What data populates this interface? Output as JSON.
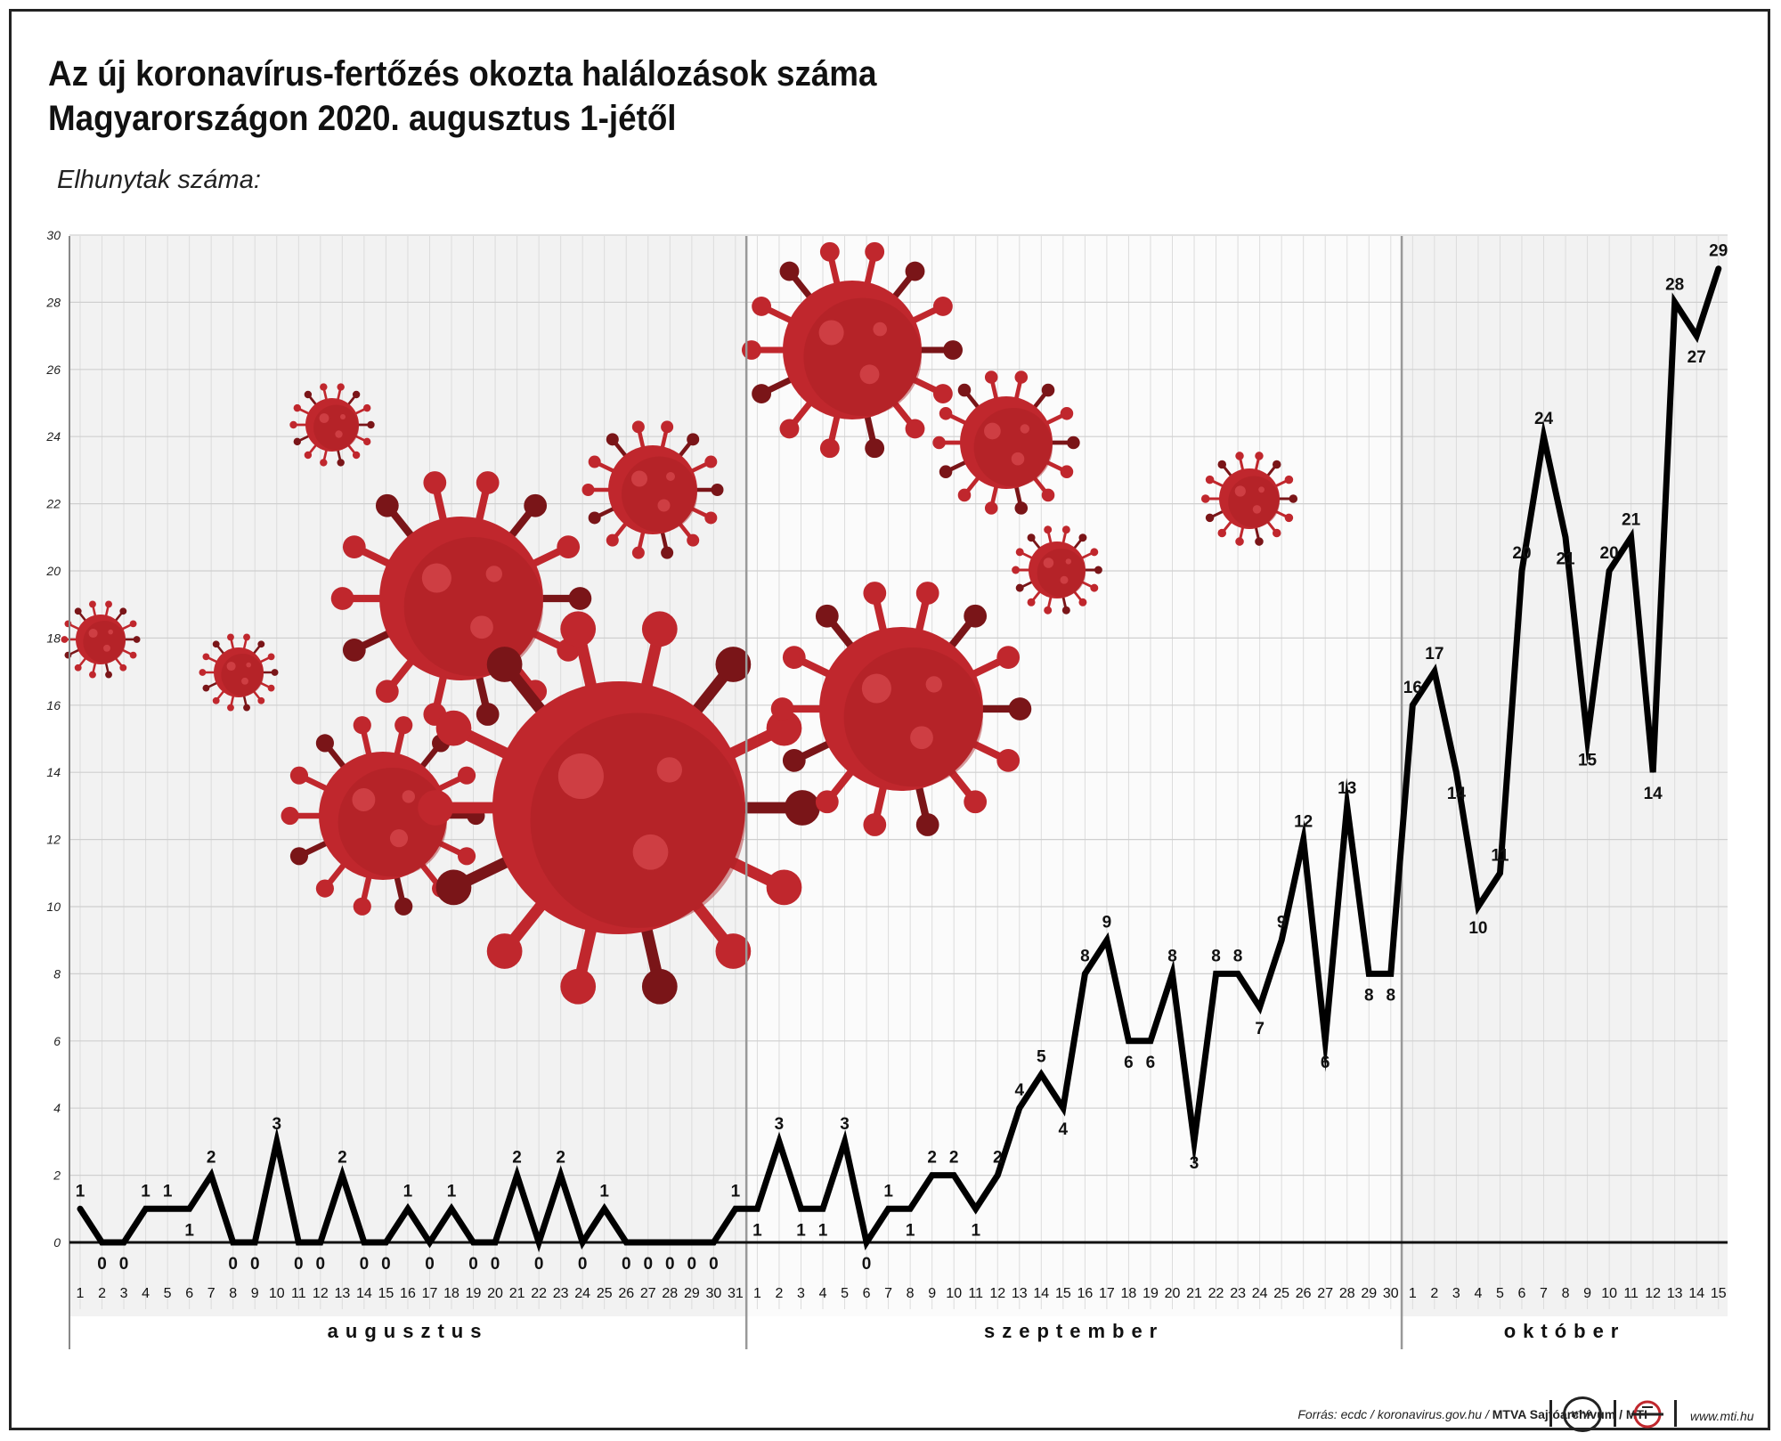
{
  "title_line1": "Az új koronavírus-fertőzés okozta halálozások száma",
  "title_line2": "Magyarországon 2020. augusztus 1-jétől",
  "subtitle": "Elhunytak száma:",
  "footer": {
    "source_prefix": "Forrás: ecdc / koronavirus.gov.hu / ",
    "source_bold": "MTVA Sajtóarchívum / MTI",
    "badge": "MTVA",
    "site": "www.mti.hu"
  },
  "colors": {
    "line": "#000000",
    "virus": "#c0272d",
    "virus_dark": "#7a1518",
    "grid": "#dcdcdc",
    "band": "#f2f2f2"
  },
  "icons": [
    "coronavirus-icon",
    "mti-logo-icon"
  ],
  "chart_data": {
    "type": "line",
    "title": "Az új koronavírus-fertőzés okozta halálozások száma Magyarországon 2020. augusztus 1-jétől",
    "ylabel": "Elhunytak száma:",
    "ylim": [
      0,
      30
    ],
    "yticks": [
      "0",
      "2",
      "4",
      "6",
      "8",
      "10",
      "12",
      "14",
      "16",
      "18",
      "20",
      "22",
      "24",
      "26",
      "28",
      "30"
    ],
    "grid": true,
    "months": [
      {
        "name": "augusztus",
        "days": [
          "1",
          "2",
          "3",
          "4",
          "5",
          "6",
          "7",
          "8",
          "9",
          "10",
          "11",
          "12",
          "13",
          "14",
          "15",
          "16",
          "17",
          "18",
          "19",
          "20",
          "21",
          "22",
          "23",
          "24",
          "25",
          "26",
          "27",
          "28",
          "29",
          "30",
          "31"
        ]
      },
      {
        "name": "szeptember",
        "days": [
          "1",
          "2",
          "3",
          "4",
          "5",
          "6",
          "7",
          "8",
          "9",
          "10",
          "11",
          "12",
          "13",
          "14",
          "15",
          "16",
          "17",
          "18",
          "19",
          "20",
          "21",
          "22",
          "23",
          "24",
          "25",
          "26",
          "27",
          "28",
          "29",
          "30"
        ]
      },
      {
        "name": "október",
        "days": [
          "1",
          "2",
          "3",
          "4",
          "5",
          "6",
          "7",
          "8",
          "9",
          "10",
          "11",
          "12",
          "13",
          "14",
          "15"
        ]
      }
    ],
    "series": [
      {
        "values": [
          1,
          0,
          0,
          1,
          1,
          1,
          2,
          0,
          0,
          3,
          0,
          0,
          2,
          0,
          0,
          1,
          0,
          1,
          0,
          0,
          2,
          0,
          2,
          0,
          1,
          0,
          0,
          0,
          0,
          0,
          1,
          1,
          3,
          1,
          1,
          3,
          0,
          1,
          1,
          2,
          2,
          1,
          2,
          4,
          5,
          4,
          8,
          9,
          6,
          6,
          8,
          3,
          8,
          8,
          7,
          9,
          12,
          6,
          13,
          8,
          8,
          16,
          17,
          14,
          10,
          11,
          20,
          24,
          21,
          15,
          20,
          21,
          14,
          28,
          27,
          29
        ]
      }
    ]
  }
}
